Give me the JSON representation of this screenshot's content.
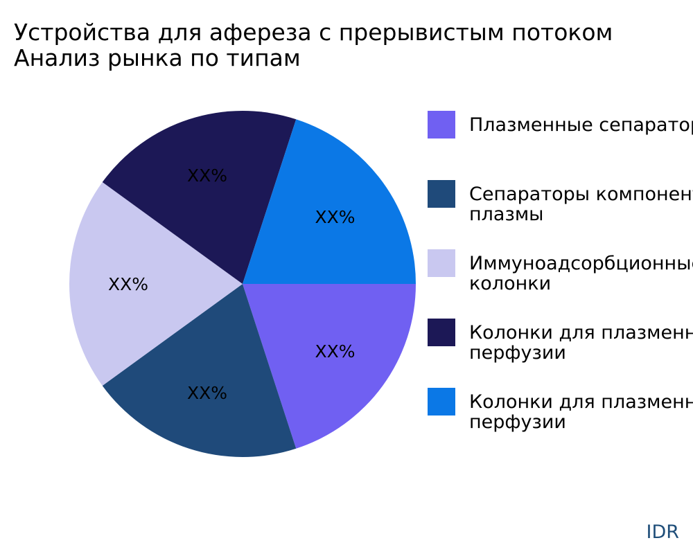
{
  "title_lines": [
    "Устройства для афереза с прерывистым потоком",
    "Анализ рынка по типам"
  ],
  "brand": "IDR",
  "chart_data": {
    "type": "pie",
    "title": "Устройства для афереза с прерывистым потоком Анализ рынка по типам",
    "legend_position": "right",
    "slices": [
      {
        "name": "Плазменные сепараторы",
        "value": 20,
        "label": "XX%",
        "color": "#7060f2"
      },
      {
        "name": "Сепараторы компонентов плазмы",
        "value": 20,
        "label": "XX%",
        "color": "#1f4a7a"
      },
      {
        "name": "Иммуноадсорбционные колонки",
        "value": 20,
        "label": "XX%",
        "color": "#c9c8f0"
      },
      {
        "name": "Колонки для плазменной перфузии",
        "value": 20,
        "label": "XX%",
        "color": "#1c1856"
      },
      {
        "name": "Колонки для плазменной перфузии",
        "value": 20,
        "label": "XX%",
        "color": "#0b78e6"
      }
    ],
    "legend_lines": [
      [
        "Плазменные сепараторы"
      ],
      [
        "Сепараторы компонентов",
        "плазмы"
      ],
      [
        "Иммуноадсорбционные",
        "колонки"
      ],
      [
        "Колонки для плазменной",
        "перфузии"
      ],
      [
        "Колонки для плазменной",
        "перфузии"
      ]
    ]
  }
}
